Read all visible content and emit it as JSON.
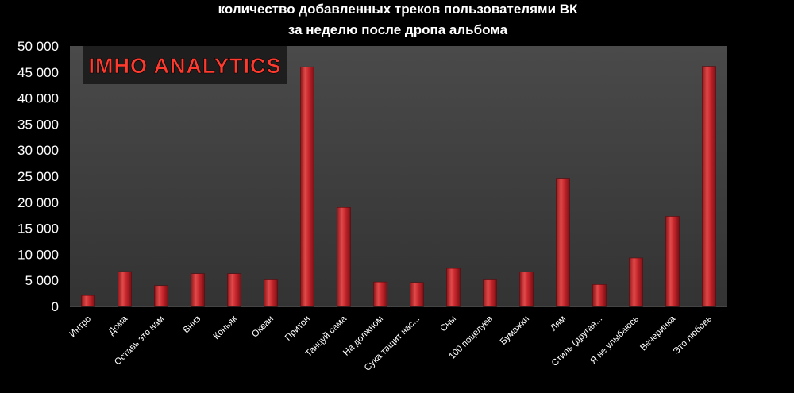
{
  "chart_data": {
    "type": "bar",
    "title_line1": "количество добавленных треков пользователями ВК",
    "title_line2": "за неделю после дропа альбома",
    "watermark": "IMHO ANALYTICS",
    "categories": [
      "Интро",
      "Дома",
      "Оставь это нам",
      "Вниз",
      "Коньяк",
      "Океан",
      "Притон",
      "Танцуй сама",
      "На должном",
      "Сука тащит нас...",
      "Сны",
      "100 поцелуев",
      "Бумажки",
      "Лям",
      "Стиль (другая...",
      "Я не улыбаюсь",
      "Вечеринка",
      "Это любовь"
    ],
    "values": [
      2100,
      6700,
      4000,
      6300,
      6300,
      5100,
      46000,
      19000,
      4700,
      4600,
      7300,
      5100,
      6600,
      24600,
      4200,
      9300,
      17300,
      46100
    ],
    "ylim": [
      0,
      50000
    ],
    "yticks": [
      "0",
      "5 000",
      "10 000",
      "15 000",
      "20 000",
      "25 000",
      "30 000",
      "35 000",
      "40 000",
      "45 000",
      "50 000"
    ],
    "grid": false,
    "colors": {
      "bar": "#c8272d",
      "plot_bg": "#3e3e3e",
      "page_bg": "#000000",
      "logo_bg": "#1e1e1e",
      "logo_text": "#ff3b2f"
    }
  }
}
